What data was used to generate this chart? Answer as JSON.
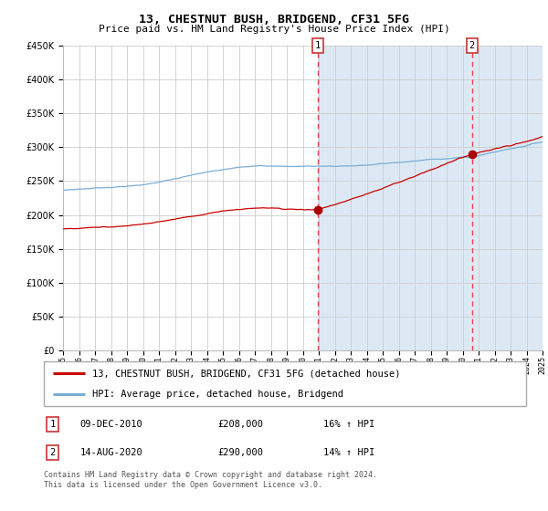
{
  "title": "13, CHESTNUT BUSH, BRIDGEND, CF31 5FG",
  "subtitle": "Price paid vs. HM Land Registry's House Price Index (HPI)",
  "legend_label_red": "13, CHESTNUT BUSH, BRIDGEND, CF31 5FG (detached house)",
  "legend_label_blue": "HPI: Average price, detached house, Bridgend",
  "annotation1_date": "09-DEC-2010",
  "annotation1_price": "£208,000",
  "annotation1_hpi": "16% ↑ HPI",
  "annotation2_date": "14-AUG-2020",
  "annotation2_price": "£290,000",
  "annotation2_hpi": "14% ↑ HPI",
  "footnote": "Contains HM Land Registry data © Crown copyright and database right 2024.\nThis data is licensed under the Open Government Licence v3.0.",
  "ylim": [
    0,
    450000
  ],
  "yticks": [
    0,
    50000,
    100000,
    150000,
    200000,
    250000,
    300000,
    350000,
    400000,
    450000
  ],
  "background_color": "#ffffff",
  "plot_bg_color": "#ffffff",
  "shaded_region_color": "#dce9f5",
  "grid_color": "#cccccc",
  "red_line_color": "#cc0000",
  "blue_line_color": "#7aadd4",
  "dashed_line_color": "#ee4444",
  "dot_color": "#aa0000",
  "ann1_year": 2010.92,
  "ann1_value": 208000,
  "ann2_year": 2020.62,
  "ann2_value": 290000,
  "start_year": 1995,
  "end_year": 2025
}
